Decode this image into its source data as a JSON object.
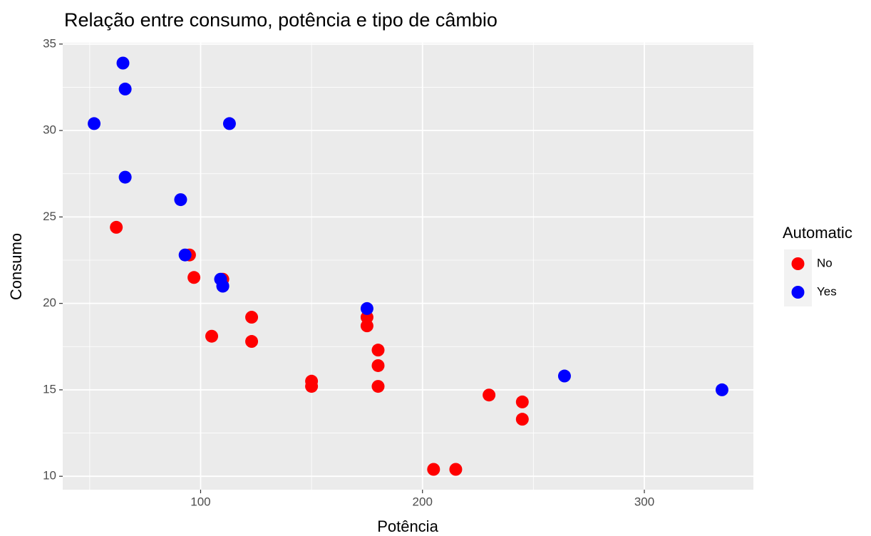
{
  "chart_data": {
    "type": "scatter",
    "title": "Relação entre consumo, potência e tipo de câmbio",
    "x_label": "Potência",
    "y_label": "Consumo",
    "legend_title": "Automatic",
    "series": [
      {
        "name": "No",
        "color": "#ff0000",
        "x": [
          110,
          175,
          105,
          245,
          62,
          95,
          123,
          123,
          180,
          180,
          180,
          205,
          215,
          230,
          97,
          150,
          150,
          245,
          175
        ],
        "values": [
          21.4,
          18.7,
          18.1,
          14.3,
          24.4,
          22.8,
          19.2,
          17.8,
          16.4,
          17.3,
          15.2,
          10.4,
          10.4,
          14.7,
          21.5,
          15.5,
          15.2,
          13.3,
          19.2
        ]
      },
      {
        "name": "Yes",
        "color": "#0000ff",
        "x": [
          110,
          110,
          93,
          66,
          52,
          65,
          66,
          91,
          113,
          264,
          175,
          335,
          109
        ],
        "values": [
          21,
          21,
          22.8,
          32.4,
          30.4,
          33.9,
          27.3,
          26,
          30.4,
          15.8,
          19.7,
          15,
          21.4
        ]
      }
    ],
    "xlim": [
      37.85,
      349.15
    ],
    "xticks": [
      100,
      200,
      300
    ],
    "ylim": [
      9.225,
      35.075
    ],
    "yticks": [
      10,
      15,
      20,
      25,
      30,
      35
    ],
    "grid": true,
    "legend_position": "right"
  }
}
